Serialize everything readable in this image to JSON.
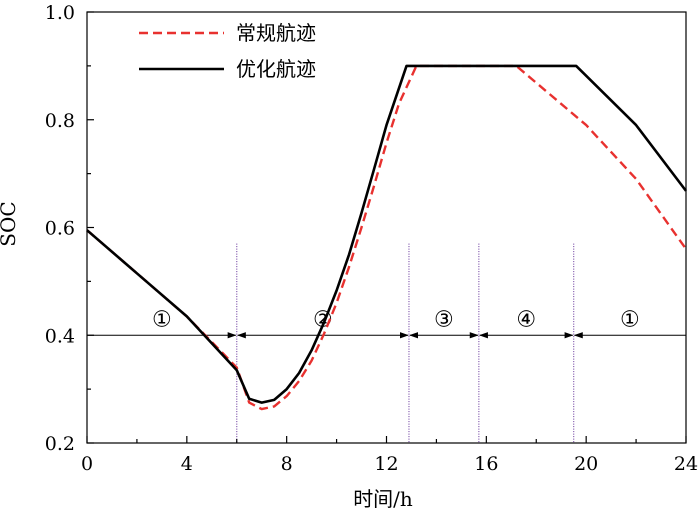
{
  "chart_data": {
    "type": "line",
    "xlabel": "时间/h",
    "ylabel": "SOC",
    "xlim": [
      0,
      24
    ],
    "ylim": [
      0.2,
      1.0
    ],
    "xticks": [
      0,
      4,
      8,
      12,
      16,
      20,
      24
    ],
    "yticks": [
      0.2,
      0.4,
      0.6,
      0.8,
      1.0
    ],
    "x_tick_labels": [
      "0",
      "4",
      "8",
      "12",
      "16",
      "20",
      "24"
    ],
    "y_tick_labels": [
      "0.2",
      "0.4",
      "0.6",
      "0.8",
      "1.0"
    ],
    "legend_position": "top-left",
    "series": [
      {
        "name": "常规航迹",
        "color": "#e8312f",
        "style": "dashed",
        "x": [
          0,
          2,
          4,
          6,
          6.5,
          7,
          7.5,
          8,
          8.5,
          9,
          9.5,
          10,
          10.5,
          11,
          11.5,
          12,
          12.5,
          13.2,
          17.2,
          20,
          22,
          24
        ],
        "y": [
          0.595,
          0.515,
          0.435,
          0.34,
          0.275,
          0.263,
          0.268,
          0.287,
          0.315,
          0.353,
          0.403,
          0.46,
          0.527,
          0.6,
          0.677,
          0.757,
          0.83,
          0.9,
          0.9,
          0.79,
          0.69,
          0.56
        ]
      },
      {
        "name": "优化航迹",
        "color": "#000000",
        "style": "solid",
        "x": [
          0,
          2,
          4,
          6,
          6.5,
          7,
          7.5,
          8,
          8.5,
          9,
          9.5,
          10,
          10.5,
          11,
          11.5,
          12,
          12.8,
          19.6,
          22,
          24
        ],
        "y": [
          0.595,
          0.515,
          0.435,
          0.335,
          0.282,
          0.275,
          0.28,
          0.3,
          0.33,
          0.372,
          0.424,
          0.483,
          0.55,
          0.627,
          0.708,
          0.79,
          0.9,
          0.9,
          0.79,
          0.668
        ]
      }
    ],
    "phase_boundaries": [
      6,
      12.9,
      15.7,
      19.5
    ],
    "phase_arrow_y": 0.4,
    "phases": [
      {
        "label": "①",
        "from": 0,
        "to": 6
      },
      {
        "label": "②",
        "from": 6,
        "to": 12.9
      },
      {
        "label": "③",
        "from": 12.9,
        "to": 15.7
      },
      {
        "label": "④",
        "from": 15.7,
        "to": 19.5
      },
      {
        "label": "①",
        "from": 19.5,
        "to": 24
      }
    ]
  }
}
